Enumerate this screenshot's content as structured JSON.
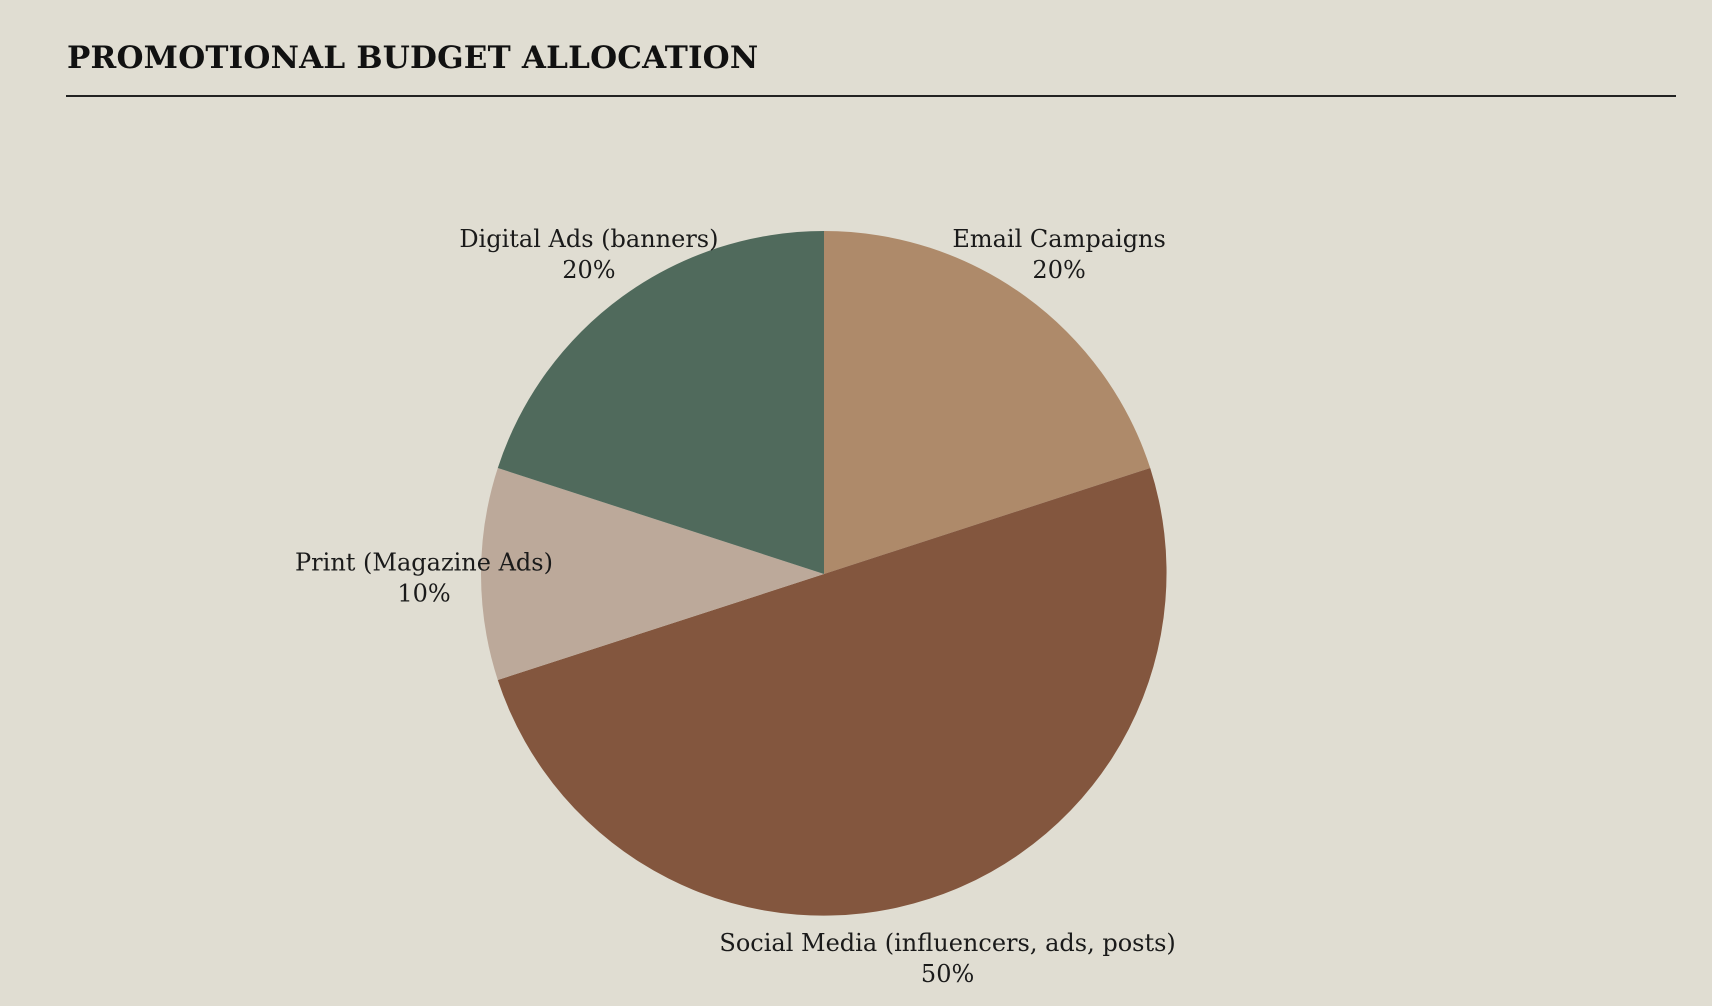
{
  "chart_data": {
    "type": "pie",
    "title": "PROMOTIONAL BUDGET ALLOCATION",
    "categories": [
      "Email Campaigns",
      "Social Media (influencers, ads, posts)",
      "Print (Magazine Ads)",
      "Digital Ads (banners)"
    ],
    "values": [
      20,
      50,
      10,
      20
    ],
    "value_labels": [
      "20%",
      "50%",
      "10%",
      "20%"
    ],
    "colors": [
      "#ae8a6a",
      "#83563e",
      "#bca99a",
      "#506a5c"
    ],
    "start_angle_deg": 0,
    "direction": "clockwise",
    "legend": "none"
  }
}
